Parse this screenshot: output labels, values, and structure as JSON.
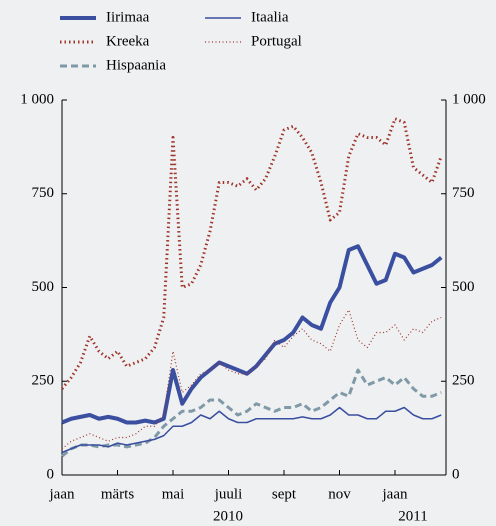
{
  "chart_data": {
    "type": "line",
    "categories": [
      "jaan",
      null,
      null,
      null,
      null,
      null,
      "märts",
      null,
      null,
      null,
      null,
      null,
      "mai",
      null,
      null,
      null,
      null,
      null,
      "juuli",
      null,
      null,
      null,
      null,
      null,
      "sept",
      null,
      null,
      null,
      null,
      null,
      "nov",
      null,
      null,
      null,
      null,
      null,
      "jaan",
      null,
      null,
      null,
      null,
      null
    ],
    "year_labels": [
      "2010",
      "2011"
    ],
    "ylim": [
      0,
      1000
    ],
    "yticks": [
      0,
      250,
      500,
      750,
      {
        "value": 1000,
        "label": "1 000"
      }
    ],
    "y2lim": [
      0,
      1000
    ],
    "y2ticks": [
      0,
      250,
      500,
      750,
      {
        "value": 1000,
        "label": "1 000"
      }
    ],
    "series": [
      {
        "name": "Iirimaa",
        "color": "#3b4fa0",
        "style": "solid",
        "weight": "thick",
        "values": [
          140,
          150,
          155,
          160,
          150,
          155,
          150,
          140,
          140,
          145,
          140,
          150,
          280,
          190,
          230,
          260,
          280,
          300,
          290,
          280,
          270,
          290,
          320,
          350,
          360,
          380,
          420,
          400,
          390,
          460,
          500,
          600,
          610,
          560,
          510,
          520,
          590,
          580,
          540,
          550,
          560,
          580
        ]
      },
      {
        "name": "Kreeka",
        "color": "#a0342a",
        "style": "dotted",
        "weight": "thick",
        "values": [
          230,
          260,
          300,
          370,
          330,
          310,
          330,
          290,
          300,
          310,
          340,
          420,
          900,
          500,
          510,
          560,
          650,
          780,
          780,
          770,
          790,
          760,
          790,
          850,
          920,
          930,
          900,
          860,
          780,
          680,
          700,
          850,
          910,
          900,
          900,
          880,
          950,
          940,
          820,
          800,
          780,
          850
        ]
      },
      {
        "name": "Hispaania",
        "color": "#7f9aa6",
        "style": "dashed",
        "weight": "thick",
        "values": [
          50,
          70,
          80,
          80,
          75,
          80,
          80,
          75,
          80,
          85,
          100,
          130,
          150,
          170,
          170,
          180,
          200,
          200,
          180,
          160,
          170,
          190,
          180,
          170,
          180,
          180,
          190,
          170,
          180,
          200,
          220,
          210,
          280,
          240,
          250,
          260,
          240,
          260,
          230,
          210,
          210,
          220
        ]
      },
      {
        "name": "Itaalia",
        "color": "#3b4fa0",
        "style": "solid",
        "weight": "thin",
        "values": [
          60,
          70,
          80,
          80,
          80,
          75,
          85,
          80,
          85,
          90,
          95,
          105,
          130,
          130,
          140,
          160,
          150,
          170,
          150,
          140,
          140,
          150,
          150,
          150,
          150,
          150,
          155,
          150,
          150,
          160,
          180,
          160,
          160,
          150,
          150,
          170,
          170,
          180,
          160,
          150,
          150,
          160
        ]
      },
      {
        "name": "Portugal",
        "color": "#a0342a",
        "style": "dotted",
        "weight": "thin",
        "values": [
          70,
          90,
          100,
          110,
          100,
          90,
          100,
          100,
          110,
          130,
          130,
          160,
          330,
          220,
          240,
          270,
          280,
          300,
          280,
          270,
          270,
          290,
          310,
          360,
          340,
          370,
          390,
          360,
          350,
          330,
          400,
          440,
          360,
          340,
          380,
          380,
          400,
          360,
          390,
          380,
          410,
          420
        ]
      }
    ]
  }
}
